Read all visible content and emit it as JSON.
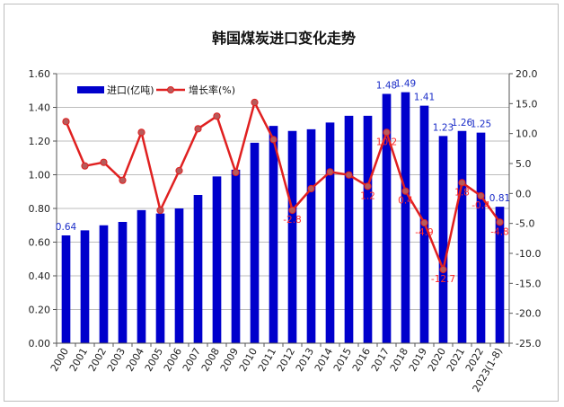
{
  "chart_data": {
    "type": "bar+line",
    "title": "韩国煤炭进口变化走势",
    "categories": [
      "2000",
      "2001",
      "2002",
      "2003",
      "2004",
      "2005",
      "2006",
      "2007",
      "2008",
      "2009",
      "2010",
      "2011",
      "2012",
      "2013",
      "2014",
      "2015",
      "2016",
      "2017",
      "2018",
      "2019",
      "2020",
      "2021",
      "2022",
      "2023(1-8)"
    ],
    "series": [
      {
        "name": "进口(亿吨)",
        "type": "bar",
        "axis": "left",
        "color": "#0000cc",
        "values": [
          0.64,
          0.67,
          0.7,
          0.72,
          0.79,
          0.77,
          0.8,
          0.88,
          0.99,
          1.03,
          1.19,
          1.29,
          1.26,
          1.27,
          1.31,
          1.35,
          1.35,
          1.48,
          1.49,
          1.41,
          1.23,
          1.26,
          1.25,
          0.81
        ],
        "value_labels": {
          "0": "0.64",
          "17": "1.48",
          "18": "1.49",
          "19": "1.41",
          "20": "1.23",
          "21": "1.26",
          "22": "1.25",
          "23": "0.81"
        }
      },
      {
        "name": "增长率(%)",
        "type": "line",
        "axis": "right",
        "color": "#e02020",
        "values": [
          12.0,
          4.6,
          5.2,
          2.2,
          10.2,
          -2.8,
          3.8,
          10.8,
          12.9,
          3.5,
          15.2,
          9.0,
          -2.8,
          0.8,
          3.6,
          3.1,
          1.2,
          10.2,
          0.4,
          -4.9,
          -12.7,
          1.8,
          -0.4,
          -4.8
        ],
        "value_labels": {
          "12": "-2.8",
          "16": "1.2",
          "17": "10.2",
          "18": "0.4",
          "19": "-4.9",
          "20": "-12.7",
          "21": "1.8",
          "22": "-0.4",
          "23": "-4.8"
        }
      }
    ],
    "y_left": {
      "min": 0,
      "max": 1.6,
      "step": 0.2,
      "tick_labels": [
        "0.00",
        "0.20",
        "0.40",
        "0.60",
        "0.80",
        "1.00",
        "1.20",
        "1.40",
        "1.60"
      ]
    },
    "y_right": {
      "min": -25,
      "max": 20,
      "step": 5,
      "tick_labels": [
        "-25.0",
        "-20.0",
        "-15.0",
        "-10.0",
        "-5.0",
        "0.0",
        "5.0",
        "10.0",
        "15.0",
        "20.0"
      ]
    },
    "grid": true,
    "legend_position": "top-left"
  }
}
